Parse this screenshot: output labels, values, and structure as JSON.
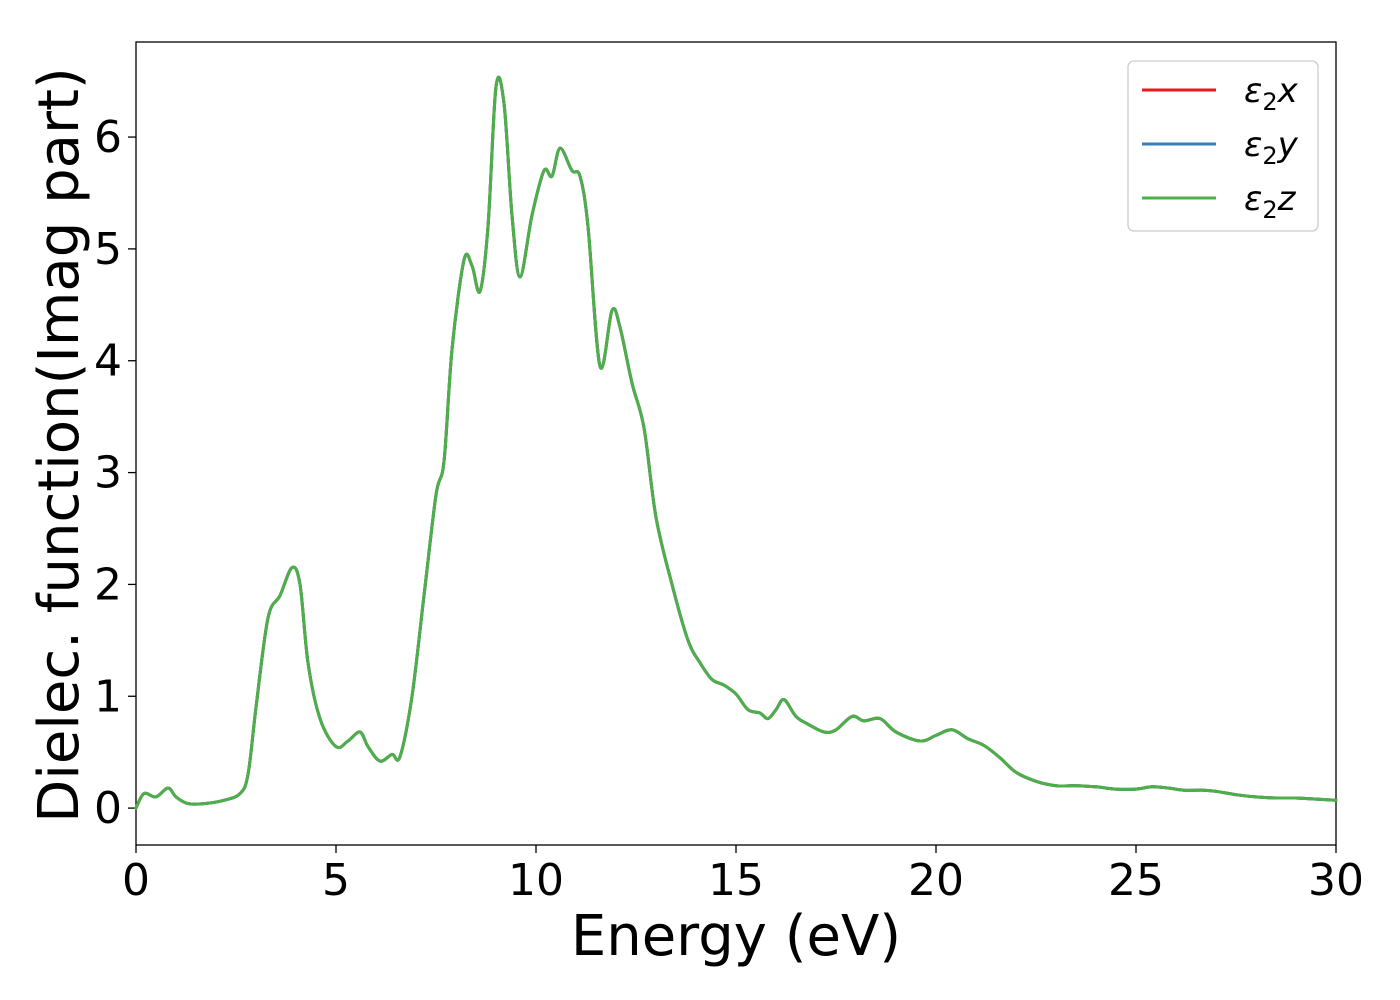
{
  "chart_data": {
    "type": "line",
    "xlabel": "Energy (eV)",
    "ylabel": "Dielec. function(Imag part)",
    "xlim": [
      0,
      30
    ],
    "ylim": [
      -0.33,
      6.85
    ],
    "xticks": [
      0,
      5,
      10,
      15,
      20,
      25,
      30
    ],
    "yticks": [
      0,
      1,
      2,
      3,
      4,
      5,
      6
    ],
    "grid": false,
    "legend_position": "top-right",
    "series": [
      {
        "name": "ε₂x",
        "legend_base": "ε",
        "legend_sub": "2",
        "legend_suffix": "x",
        "color": "#e41a1c"
      },
      {
        "name": "ε₂y",
        "legend_base": "ε",
        "legend_sub": "2",
        "legend_suffix": "y",
        "color": "#377eb8"
      },
      {
        "name": "ε₂z",
        "legend_base": "ε",
        "legend_sub": "2",
        "legend_suffix": "z",
        "color": "#4daf4a"
      }
    ],
    "x": [
      0,
      0.2,
      0.5,
      0.8,
      1.0,
      1.3,
      1.7,
      2.2,
      2.6,
      2.8,
      3.0,
      3.3,
      3.6,
      3.9,
      4.1,
      4.3,
      4.6,
      5.0,
      5.3,
      5.6,
      5.8,
      6.1,
      6.4,
      6.6,
      6.9,
      7.2,
      7.5,
      7.7,
      7.9,
      8.2,
      8.4,
      8.6,
      8.8,
      9.0,
      9.2,
      9.4,
      9.6,
      9.9,
      10.2,
      10.4,
      10.6,
      10.9,
      11.1,
      11.3,
      11.6,
      11.9,
      12.1,
      12.4,
      12.7,
      13.0,
      13.4,
      13.8,
      14.1,
      14.4,
      14.7,
      15.0,
      15.3,
      15.6,
      15.8,
      16.0,
      16.2,
      16.5,
      16.8,
      17.2,
      17.5,
      17.9,
      18.2,
      18.6,
      19.0,
      19.6,
      20.0,
      20.4,
      20.8,
      21.2,
      21.6,
      22.0,
      22.5,
      23.0,
      23.5,
      24.0,
      24.5,
      25.0,
      25.4,
      25.8,
      26.2,
      26.7,
      27.0,
      27.5,
      28.0,
      28.5,
      29.0,
      29.5,
      30.0
    ],
    "values": [
      0,
      0.13,
      0.1,
      0.18,
      0.1,
      0.04,
      0.04,
      0.07,
      0.13,
      0.3,
      0.9,
      1.7,
      1.9,
      2.15,
      2.0,
      1.3,
      0.8,
      0.55,
      0.6,
      0.68,
      0.55,
      0.42,
      0.48,
      0.46,
      1.0,
      1.9,
      2.8,
      3.1,
      4.1,
      4.9,
      4.85,
      4.62,
      5.2,
      6.45,
      6.3,
      5.3,
      4.75,
      5.3,
      5.7,
      5.65,
      5.9,
      5.7,
      5.65,
      5.2,
      3.95,
      4.45,
      4.3,
      3.8,
      3.4,
      2.6,
      2.0,
      1.5,
      1.3,
      1.15,
      1.1,
      1.02,
      0.88,
      0.85,
      0.8,
      0.88,
      0.97,
      0.82,
      0.75,
      0.68,
      0.7,
      0.82,
      0.78,
      0.8,
      0.68,
      0.6,
      0.65,
      0.7,
      0.62,
      0.56,
      0.45,
      0.32,
      0.24,
      0.2,
      0.2,
      0.19,
      0.17,
      0.17,
      0.19,
      0.18,
      0.16,
      0.16,
      0.15,
      0.12,
      0.1,
      0.09,
      0.09,
      0.08,
      0.07
    ]
  }
}
